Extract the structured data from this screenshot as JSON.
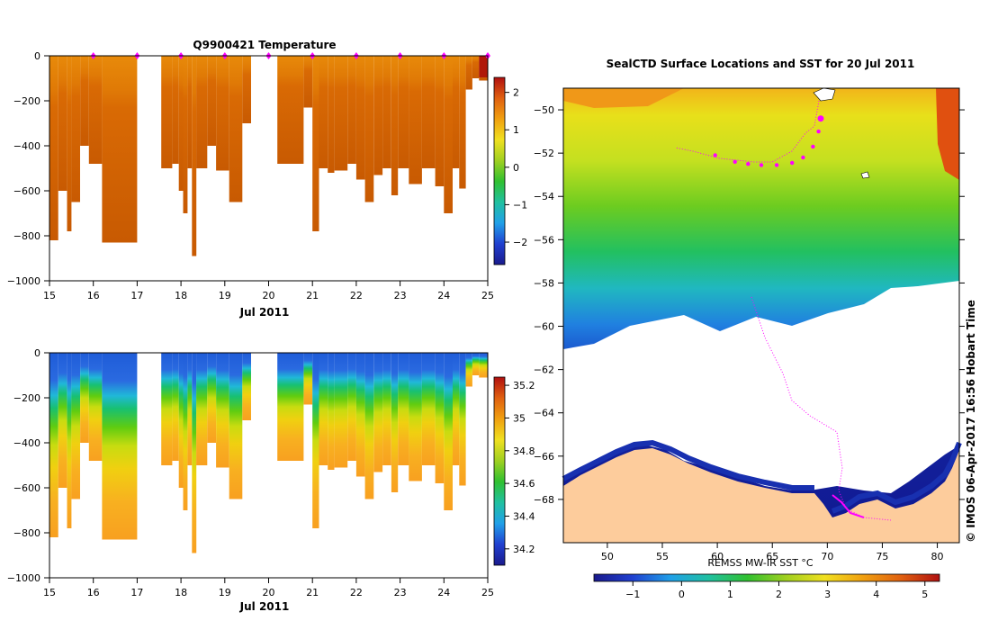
{
  "chart_data": [
    {
      "type": "heatmap",
      "title": "Q9900421  Temperature",
      "xlabel": "Jul 2011",
      "ylabel": "",
      "x_ticks": [
        "15",
        "16",
        "17",
        "18",
        "19",
        "20",
        "21",
        "22",
        "23",
        "24",
        "25"
      ],
      "xlim": [
        15,
        25
      ],
      "y_ticks": [
        "0",
        "−200",
        "−400",
        "−600",
        "−800",
        "−1000"
      ],
      "ylim": [
        -1000,
        0
      ],
      "colorbar": {
        "ticks": [
          "2",
          "1",
          "0",
          "−1",
          "−2"
        ],
        "range": [
          -2.6,
          2.4
        ]
      },
      "profile_bottoms_m": [
        {
          "start": 15.0,
          "end": 15.2,
          "bottom": 820
        },
        {
          "start": 15.2,
          "end": 15.4,
          "bottom": 600
        },
        {
          "start": 15.4,
          "end": 15.5,
          "bottom": 780
        },
        {
          "start": 15.5,
          "end": 15.7,
          "bottom": 650
        },
        {
          "start": 15.7,
          "end": 15.9,
          "bottom": 400
        },
        {
          "start": 15.9,
          "end": 16.2,
          "bottom": 480
        },
        {
          "start": 16.2,
          "end": 17.0,
          "bottom": 830
        },
        {
          "start": 17.55,
          "end": 17.8,
          "bottom": 500
        },
        {
          "start": 17.8,
          "end": 17.95,
          "bottom": 480
        },
        {
          "start": 17.95,
          "end": 18.05,
          "bottom": 600
        },
        {
          "start": 18.05,
          "end": 18.15,
          "bottom": 700
        },
        {
          "start": 18.15,
          "end": 18.25,
          "bottom": 500
        },
        {
          "start": 18.25,
          "end": 18.35,
          "bottom": 890
        },
        {
          "start": 18.35,
          "end": 18.6,
          "bottom": 500
        },
        {
          "start": 18.6,
          "end": 18.8,
          "bottom": 400
        },
        {
          "start": 18.8,
          "end": 19.1,
          "bottom": 510
        },
        {
          "start": 19.1,
          "end": 19.4,
          "bottom": 650
        },
        {
          "start": 19.4,
          "end": 19.6,
          "bottom": 300
        },
        {
          "start": 20.2,
          "end": 20.8,
          "bottom": 480
        },
        {
          "start": 20.8,
          "end": 21.0,
          "bottom": 230
        },
        {
          "start": 21.0,
          "end": 21.15,
          "bottom": 780
        },
        {
          "start": 21.15,
          "end": 21.35,
          "bottom": 500
        },
        {
          "start": 21.35,
          "end": 21.5,
          "bottom": 520
        },
        {
          "start": 21.5,
          "end": 21.8,
          "bottom": 510
        },
        {
          "start": 21.8,
          "end": 22.0,
          "bottom": 480
        },
        {
          "start": 22.0,
          "end": 22.2,
          "bottom": 550
        },
        {
          "start": 22.2,
          "end": 22.4,
          "bottom": 650
        },
        {
          "start": 22.4,
          "end": 22.6,
          "bottom": 530
        },
        {
          "start": 22.6,
          "end": 22.8,
          "bottom": 500
        },
        {
          "start": 22.8,
          "end": 22.95,
          "bottom": 620
        },
        {
          "start": 22.95,
          "end": 23.2,
          "bottom": 500
        },
        {
          "start": 23.2,
          "end": 23.5,
          "bottom": 570
        },
        {
          "start": 23.5,
          "end": 23.8,
          "bottom": 500
        },
        {
          "start": 23.8,
          "end": 24.0,
          "bottom": 580
        },
        {
          "start": 24.0,
          "end": 24.2,
          "bottom": 700
        },
        {
          "start": 24.2,
          "end": 24.35,
          "bottom": 500
        },
        {
          "start": 24.35,
          "end": 24.5,
          "bottom": 590
        },
        {
          "start": 24.5,
          "end": 24.65,
          "bottom": 150
        },
        {
          "start": 24.65,
          "end": 24.8,
          "bottom": 100
        },
        {
          "start": 24.8,
          "end": 25.0,
          "bottom": 110
        }
      ],
      "surface_markers": [
        16,
        17,
        18,
        19,
        20,
        21,
        22,
        23,
        24,
        25
      ]
    },
    {
      "type": "heatmap",
      "title": "",
      "xlabel": "Jul 2011",
      "ylabel": "",
      "x_ticks": [
        "15",
        "16",
        "17",
        "18",
        "19",
        "20",
        "21",
        "22",
        "23",
        "24",
        "25"
      ],
      "xlim": [
        15,
        25
      ],
      "y_ticks": [
        "0",
        "−200",
        "−400",
        "−600",
        "−800",
        "−1000"
      ],
      "ylim": [
        -1000,
        0
      ],
      "colorbar": {
        "ticks": [
          "35.2",
          "35",
          "34.8",
          "34.6",
          "34.4",
          "34.2"
        ],
        "range": [
          34.1,
          35.25
        ]
      }
    },
    {
      "type": "heatmap",
      "title": "SealCTD Surface Locations and SST for 20 Jul 2011",
      "xlabel": "",
      "ylabel": "",
      "x_ticks": [
        "50",
        "55",
        "60",
        "65",
        "70",
        "75",
        "80"
      ],
      "xlim": [
        46,
        82
      ],
      "y_ticks": [
        "−50",
        "−52",
        "−54",
        "−56",
        "−58",
        "−60",
        "−62",
        "−64",
        "−66",
        "−68"
      ],
      "ylim": [
        -70,
        -49
      ],
      "colorbar": {
        "label": "REMSS MW-IR SST °C",
        "ticks": [
          "−1",
          "0",
          "1",
          "2",
          "3",
          "4",
          "5"
        ],
        "range": [
          -1.8,
          5.3
        ]
      },
      "track_points": [
        {
          "lon": 69.4,
          "lat": -50.4
        },
        {
          "lon": 69.2,
          "lat": -51.0
        },
        {
          "lon": 68.7,
          "lat": -51.7
        },
        {
          "lon": 67.8,
          "lat": -52.2
        },
        {
          "lon": 66.8,
          "lat": -52.45
        },
        {
          "lon": 65.4,
          "lat": -52.55
        },
        {
          "lon": 64.0,
          "lat": -52.55
        },
        {
          "lon": 62.8,
          "lat": -52.5
        },
        {
          "lon": 61.6,
          "lat": -52.4
        },
        {
          "lon": 59.8,
          "lat": -52.1
        }
      ],
      "credit": "© IMOS 06-Apr-2017 16:56 Hobart Time"
    }
  ],
  "colors": {
    "land": "#fdcc9c",
    "track": "#ff00ff",
    "ice": "#ffffff",
    "axis": "#000000"
  }
}
